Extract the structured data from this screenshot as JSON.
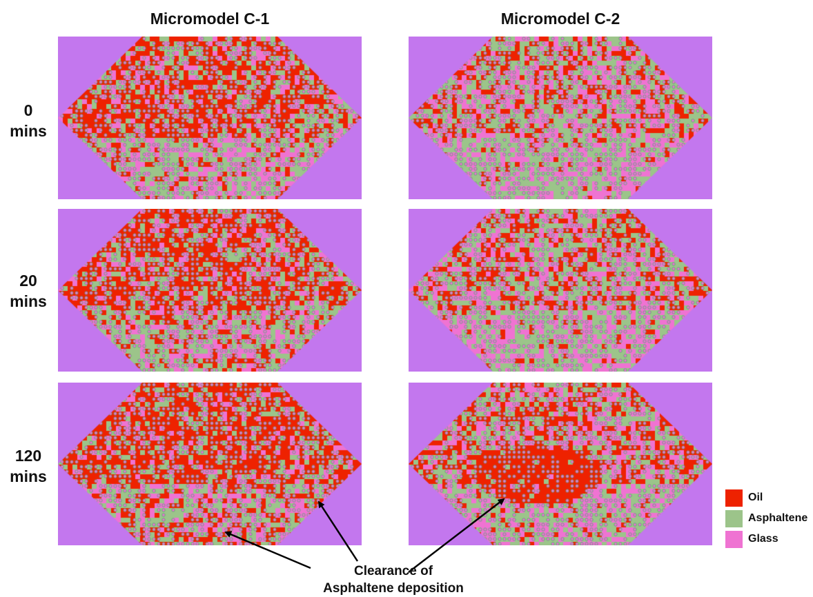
{
  "columns": [
    {
      "title": "Micromodel C-1"
    },
    {
      "title": "Micromodel C-2"
    }
  ],
  "rows": [
    {
      "line1": "0",
      "line2": "mins"
    },
    {
      "line1": "20",
      "line2": "mins"
    },
    {
      "line1": "120",
      "line2": "mins"
    }
  ],
  "legend": [
    {
      "label": "Oil",
      "color": "#ee2200"
    },
    {
      "label": "Asphaltene",
      "color": "#9cc48a"
    },
    {
      "label": "Glass",
      "color": "#ef73d2"
    }
  ],
  "annotation": {
    "line1": "Clearance of",
    "line2": "Asphaltene deposition"
  },
  "colors": {
    "background": "#c377ee",
    "oil": "#ee2200",
    "asphaltene": "#9cc48a",
    "glass": "#ef73d2",
    "grain_edge": "#3fae6c"
  }
}
